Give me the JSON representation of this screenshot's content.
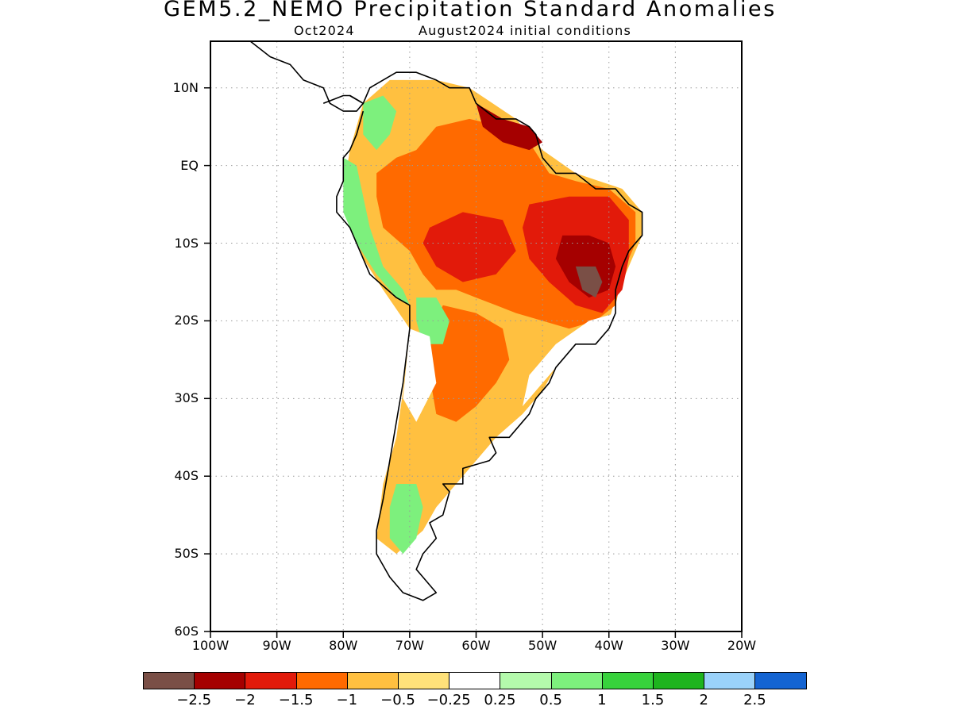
{
  "title": "GEM5.2_NEMO Precipitation Standard Anomalies",
  "subtitle_month": "Oct2024",
  "subtitle_init": "August2024 initial conditions",
  "map": {
    "lon_range": [
      -100,
      -20
    ],
    "lat_range": [
      -60,
      16
    ],
    "lat_ticks": [
      {
        "lat": 10,
        "label": "10N"
      },
      {
        "lat": 0,
        "label": "EQ"
      },
      {
        "lat": -10,
        "label": "10S"
      },
      {
        "lat": -20,
        "label": "20S"
      },
      {
        "lat": -30,
        "label": "30S"
      },
      {
        "lat": -40,
        "label": "40S"
      },
      {
        "lat": -50,
        "label": "50S"
      },
      {
        "lat": -60,
        "label": "60S"
      }
    ],
    "lon_ticks": [
      {
        "lon": -100,
        "label": "100W"
      },
      {
        "lon": -90,
        "label": "90W"
      },
      {
        "lon": -80,
        "label": "80W"
      },
      {
        "lon": -70,
        "label": "70W"
      },
      {
        "lon": -60,
        "label": "60W"
      },
      {
        "lon": -50,
        "label": "50W"
      },
      {
        "lon": -40,
        "label": "40W"
      },
      {
        "lon": -30,
        "label": "30W"
      },
      {
        "lon": -20,
        "label": "20W"
      }
    ],
    "grid": true,
    "anomaly_regions": [
      {
        "name": "north-south-america",
        "class": "lt_m0_5",
        "color": "#ffc040",
        "poly": [
          [
            -79,
            2
          ],
          [
            -77,
            8
          ],
          [
            -73,
            11
          ],
          [
            -66,
            11
          ],
          [
            -61,
            10
          ],
          [
            -54,
            6
          ],
          [
            -50,
            2
          ],
          [
            -45,
            -1
          ],
          [
            -38,
            -3
          ],
          [
            -35,
            -6
          ],
          [
            -35,
            -9
          ],
          [
            -37,
            -13
          ],
          [
            -39,
            -17
          ],
          [
            -40,
            -20
          ],
          [
            -45,
            -23
          ],
          [
            -48,
            -26
          ],
          [
            -50,
            -29
          ],
          [
            -53,
            -32
          ],
          [
            -57,
            -35
          ],
          [
            -60,
            -38
          ],
          [
            -63,
            -41
          ],
          [
            -66,
            -44
          ],
          [
            -68,
            -47
          ],
          [
            -72,
            -50
          ],
          [
            -75,
            -48
          ],
          [
            -74,
            -41
          ],
          [
            -72,
            -35
          ],
          [
            -71,
            -29
          ],
          [
            -70,
            -21
          ],
          [
            -74,
            -16
          ],
          [
            -77,
            -12
          ],
          [
            -79,
            -7
          ],
          [
            -80,
            -3
          ]
        ]
      },
      {
        "name": "amazon-core",
        "class": "lt_m1",
        "color": "#ff6a00",
        "poly": [
          [
            -75,
            -4
          ],
          [
            -75,
            -1
          ],
          [
            -72,
            1
          ],
          [
            -69,
            2
          ],
          [
            -66,
            5
          ],
          [
            -61,
            6
          ],
          [
            -56,
            5
          ],
          [
            -52,
            3
          ],
          [
            -49,
            -1
          ],
          [
            -45,
            -2
          ],
          [
            -40,
            -3
          ],
          [
            -36,
            -6
          ],
          [
            -36,
            -10
          ],
          [
            -38,
            -14
          ],
          [
            -39,
            -18
          ],
          [
            -42,
            -20
          ],
          [
            -46,
            -21
          ],
          [
            -50,
            -20
          ],
          [
            -54,
            -19
          ],
          [
            -57,
            -18
          ],
          [
            -60,
            -17
          ],
          [
            -63,
            -16
          ],
          [
            -66,
            -16
          ],
          [
            -68,
            -14
          ],
          [
            -70,
            -11
          ],
          [
            -74,
            -8
          ]
        ]
      },
      {
        "name": "central-south",
        "class": "lt_m1",
        "color": "#ff6a00",
        "poly": [
          [
            -65,
            -18
          ],
          [
            -60,
            -19
          ],
          [
            -56,
            -21
          ],
          [
            -55,
            -25
          ],
          [
            -57,
            -28
          ],
          [
            -60,
            -31
          ],
          [
            -63,
            -33
          ],
          [
            -66,
            -32
          ],
          [
            -67,
            -27
          ],
          [
            -67,
            -22
          ]
        ]
      },
      {
        "name": "amazon-lt-m1-5-west",
        "class": "lt_m1_5",
        "color": "#e21a0a",
        "poly": [
          [
            -67,
            -8
          ],
          [
            -62,
            -6
          ],
          [
            -56,
            -7
          ],
          [
            -54,
            -11
          ],
          [
            -57,
            -14
          ],
          [
            -62,
            -15
          ],
          [
            -66,
            -13
          ],
          [
            -68,
            -10
          ]
        ]
      },
      {
        "name": "amazon-lt-m1-5-east",
        "class": "lt_m1_5",
        "color": "#e21a0a",
        "poly": [
          [
            -52,
            -5
          ],
          [
            -46,
            -4
          ],
          [
            -40,
            -4
          ],
          [
            -37,
            -7
          ],
          [
            -37,
            -12
          ],
          [
            -38,
            -16
          ],
          [
            -41,
            -19
          ],
          [
            -45,
            -18
          ],
          [
            -49,
            -15
          ],
          [
            -52,
            -12
          ],
          [
            -53,
            -8
          ]
        ]
      },
      {
        "name": "northeast-lt-m2",
        "class": "lt_m2",
        "color": "#a50000",
        "poly": [
          [
            -47,
            -9
          ],
          [
            -43,
            -9
          ],
          [
            -40,
            -10
          ],
          [
            -39,
            -13
          ],
          [
            -40,
            -16
          ],
          [
            -43,
            -17
          ],
          [
            -46,
            -15
          ],
          [
            -48,
            -12
          ]
        ]
      },
      {
        "name": "northeast-lt-m2-5",
        "class": "lt_m2_5",
        "color": "#7a4f46",
        "poly": [
          [
            -45,
            -13
          ],
          [
            -42,
            -13
          ],
          [
            -41,
            -15
          ],
          [
            -42,
            -17
          ],
          [
            -44,
            -16
          ]
        ]
      },
      {
        "name": "guiana-coast-lt-m2",
        "class": "lt_m2",
        "color": "#a50000",
        "poly": [
          [
            -60,
            8
          ],
          [
            -56,
            6
          ],
          [
            -52,
            5
          ],
          [
            -50,
            3
          ],
          [
            -52,
            2
          ],
          [
            -56,
            3
          ],
          [
            -59,
            5
          ]
        ]
      },
      {
        "name": "andes-colombia-gt-0-5",
        "class": "gt_0_5",
        "color": "#7df07d",
        "poly": [
          [
            -77,
            8
          ],
          [
            -74,
            9
          ],
          [
            -72,
            7
          ],
          [
            -73,
            4
          ],
          [
            -75,
            2
          ],
          [
            -77,
            4
          ]
        ]
      },
      {
        "name": "ecuador-peru-gt-0-5",
        "class": "gt_0_5",
        "color": "#7df07d",
        "poly": [
          [
            -80,
            1
          ],
          [
            -78,
            0
          ],
          [
            -77,
            -4
          ],
          [
            -76,
            -8
          ],
          [
            -74,
            -13
          ],
          [
            -71,
            -16
          ],
          [
            -70,
            -18
          ],
          [
            -72,
            -17
          ],
          [
            -75,
            -14
          ],
          [
            -78,
            -10
          ],
          [
            -80,
            -6
          ]
        ]
      },
      {
        "name": "bolivia-gt-0-5",
        "class": "gt_0_5",
        "color": "#7df07d",
        "poly": [
          [
            -69,
            -17
          ],
          [
            -66,
            -17
          ],
          [
            -64,
            -20
          ],
          [
            -65,
            -23
          ],
          [
            -68,
            -23
          ],
          [
            -69,
            -20
          ]
        ]
      },
      {
        "name": "patagonia-gt-0-5",
        "class": "gt_0_5",
        "color": "#7df07d",
        "poly": [
          [
            -72,
            -41
          ],
          [
            -69,
            -41
          ],
          [
            -68,
            -44
          ],
          [
            -69,
            -48
          ],
          [
            -71,
            -50
          ],
          [
            -73,
            -48
          ],
          [
            -73,
            -44
          ]
        ]
      },
      {
        "name": "southeast-brazil-near-normal",
        "class": "near_normal",
        "color": "#ffffff",
        "poly": [
          [
            -43,
            -20
          ],
          [
            -39,
            -19
          ],
          [
            -40,
            -23
          ],
          [
            -44,
            -24
          ],
          [
            -48,
            -26
          ],
          [
            -51,
            -29
          ],
          [
            -53,
            -31
          ],
          [
            -52,
            -27
          ],
          [
            -48,
            -23
          ]
        ]
      },
      {
        "name": "north-chile-near-normal",
        "class": "near_normal",
        "color": "#ffffff",
        "poly": [
          [
            -70,
            -21
          ],
          [
            -67,
            -22
          ],
          [
            -66,
            -28
          ],
          [
            -69,
            -33
          ],
          [
            -71,
            -30
          ]
        ]
      }
    ],
    "coastline": [
      [
        -79,
        9
      ],
      [
        -77,
        8
      ],
      [
        -76,
        10
      ],
      [
        -74,
        11
      ],
      [
        -72,
        12
      ],
      [
        -69,
        12
      ],
      [
        -66,
        11
      ],
      [
        -64,
        10
      ],
      [
        -61,
        10
      ],
      [
        -60,
        8
      ],
      [
        -57,
        6
      ],
      [
        -54,
        6
      ],
      [
        -52,
        5
      ],
      [
        -51,
        4
      ],
      [
        -50,
        1
      ],
      [
        -48,
        -1
      ],
      [
        -45,
        -1
      ],
      [
        -42,
        -3
      ],
      [
        -39,
        -3
      ],
      [
        -37,
        -5
      ],
      [
        -35,
        -6
      ],
      [
        -35,
        -9
      ],
      [
        -37,
        -11
      ],
      [
        -38,
        -13
      ],
      [
        -39,
        -16
      ],
      [
        -39,
        -19
      ],
      [
        -40,
        -21
      ],
      [
        -42,
        -23
      ],
      [
        -45,
        -23
      ],
      [
        -48,
        -26
      ],
      [
        -49,
        -28
      ],
      [
        -51,
        -30
      ],
      [
        -52,
        -32
      ],
      [
        -53,
        -33
      ],
      [
        -55,
        -35
      ],
      [
        -58,
        -35
      ],
      [
        -57,
        -37
      ],
      [
        -58,
        -38
      ],
      [
        -62,
        -39
      ],
      [
        -62,
        -41
      ],
      [
        -65,
        -41
      ],
      [
        -64,
        -42
      ],
      [
        -65,
        -45
      ],
      [
        -67,
        -46
      ],
      [
        -66,
        -48
      ],
      [
        -68,
        -50
      ],
      [
        -69,
        -52
      ],
      [
        -68,
        -53
      ],
      [
        -66,
        -55
      ],
      [
        -68,
        -56
      ],
      [
        -71,
        -55
      ],
      [
        -73,
        -53
      ],
      [
        -75,
        -50
      ],
      [
        -75,
        -47
      ],
      [
        -74,
        -43
      ],
      [
        -73,
        -38
      ],
      [
        -72,
        -33
      ],
      [
        -71,
        -28
      ],
      [
        -70,
        -21
      ],
      [
        -70,
        -18
      ],
      [
        -72,
        -17
      ],
      [
        -76,
        -14
      ],
      [
        -77,
        -12
      ],
      [
        -79,
        -8
      ],
      [
        -81,
        -6
      ],
      [
        -81,
        -4
      ],
      [
        -80,
        -2
      ],
      [
        -80,
        1
      ],
      [
        -79,
        2
      ],
      [
        -78,
        4
      ],
      [
        -77,
        7
      ]
    ],
    "central_america": [
      [
        -83,
        8
      ],
      [
        -80,
        9
      ],
      [
        -79,
        9
      ],
      [
        -77,
        8
      ],
      [
        -78,
        7
      ],
      [
        -80,
        7
      ],
      [
        -82,
        8
      ],
      [
        -83,
        10
      ],
      [
        -86,
        11
      ],
      [
        -88,
        13
      ],
      [
        -91,
        14
      ],
      [
        -94,
        16
      ],
      [
        -96,
        16
      ],
      [
        -98,
        17
      ],
      [
        -100,
        18
      ]
    ]
  },
  "colorbar": {
    "colors": [
      "#7a4f46",
      "#a50000",
      "#e21a0a",
      "#ff6a00",
      "#ffc040",
      "#ffe27a",
      "#ffffff",
      "#b4faac",
      "#7df07d",
      "#37d23c",
      "#1eb41e",
      "#9ad2fa",
      "#1464d2"
    ],
    "labels": [
      "−2.5",
      "−2",
      "−1.5",
      "−1",
      "−0.5",
      "−0.25",
      "0.25",
      "0.5",
      "1",
      "1.5",
      "2",
      "2.5"
    ]
  }
}
